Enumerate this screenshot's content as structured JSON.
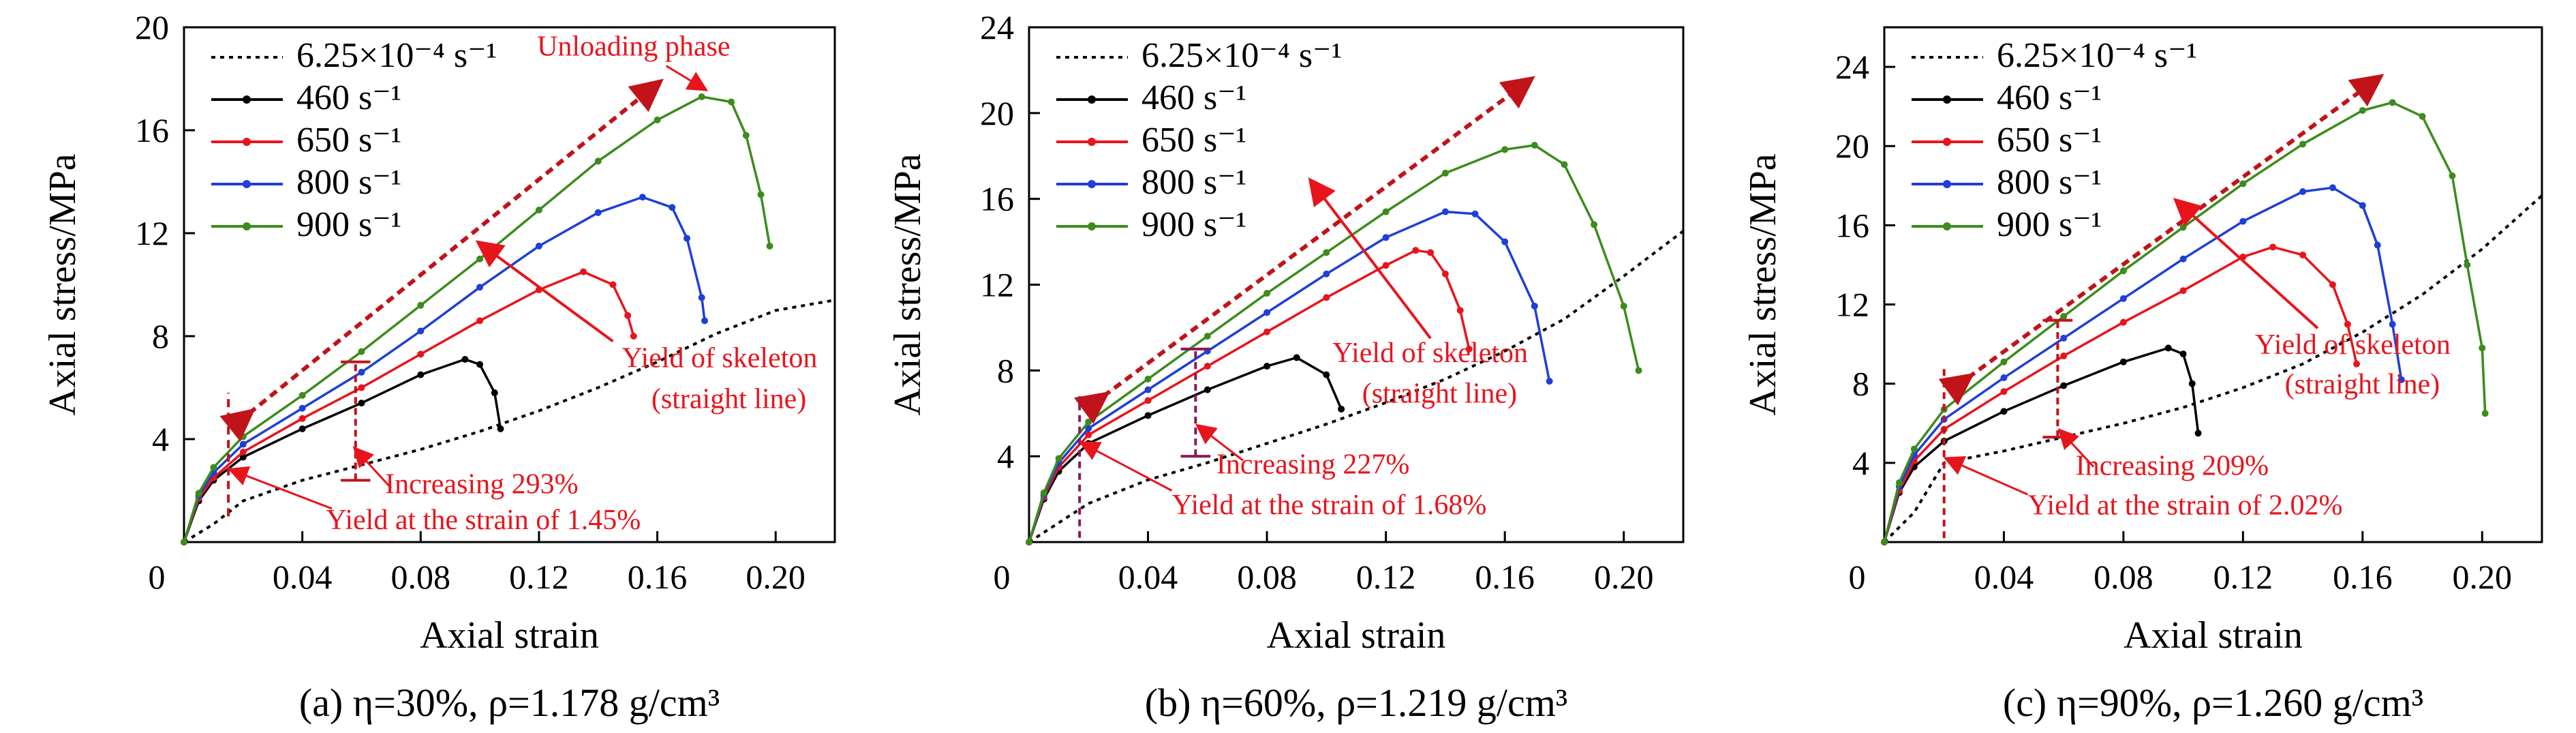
{
  "chart_data": [
    {
      "type": "line",
      "caption": "(a) η=30%,  ρ=1.178 g/cm³",
      "xlabel": "Axial strain",
      "ylabel": "Axial stress/MPa",
      "xlim": [
        0,
        0.22
      ],
      "ylim": [
        0,
        20
      ],
      "x_ticks": [
        "0",
        "0.04",
        "0.08",
        "0.12",
        "0.16",
        "0.20"
      ],
      "y_ticks": [
        "4",
        "8",
        "12",
        "16",
        "20"
      ],
      "legend_position": "top-left",
      "series": [
        {
          "name": "6.25×10⁻⁴ s⁻¹",
          "color": "#000000",
          "style": "dotted",
          "points": [
            [
              0,
              0
            ],
            [
              0.01,
              0.7
            ],
            [
              0.02,
              1.6
            ],
            [
              0.04,
              2.4
            ],
            [
              0.06,
              3.0
            ],
            [
              0.08,
              3.6
            ],
            [
              0.1,
              4.3
            ],
            [
              0.12,
              5.1
            ],
            [
              0.14,
              6.0
            ],
            [
              0.16,
              7.0
            ],
            [
              0.18,
              8.1
            ],
            [
              0.2,
              9.0
            ],
            [
              0.22,
              9.4
            ]
          ]
        },
        {
          "name": "460 s⁻¹",
          "color": "#000000",
          "style": "solid",
          "points": [
            [
              0,
              0
            ],
            [
              0.005,
              1.6
            ],
            [
              0.01,
              2.4
            ],
            [
              0.02,
              3.3
            ],
            [
              0.04,
              4.4
            ],
            [
              0.06,
              5.4
            ],
            [
              0.08,
              6.5
            ],
            [
              0.095,
              7.1
            ],
            [
              0.1,
              6.9
            ],
            [
              0.105,
              5.8
            ],
            [
              0.107,
              4.4
            ]
          ]
        },
        {
          "name": "650 s⁻¹",
          "color": "#e8141c",
          "style": "solid",
          "points": [
            [
              0,
              0
            ],
            [
              0.005,
              1.7
            ],
            [
              0.01,
              2.5
            ],
            [
              0.02,
              3.5
            ],
            [
              0.04,
              4.8
            ],
            [
              0.06,
              6.0
            ],
            [
              0.08,
              7.3
            ],
            [
              0.1,
              8.6
            ],
            [
              0.12,
              9.8
            ],
            [
              0.135,
              10.5
            ],
            [
              0.145,
              10.0
            ],
            [
              0.15,
              8.8
            ],
            [
              0.152,
              8.0
            ]
          ]
        },
        {
          "name": "800 s⁻¹",
          "color": "#1f3fd6",
          "style": "solid",
          "points": [
            [
              0,
              0
            ],
            [
              0.005,
              1.8
            ],
            [
              0.01,
              2.7
            ],
            [
              0.02,
              3.8
            ],
            [
              0.04,
              5.2
            ],
            [
              0.06,
              6.6
            ],
            [
              0.08,
              8.2
            ],
            [
              0.1,
              9.9
            ],
            [
              0.12,
              11.5
            ],
            [
              0.14,
              12.8
            ],
            [
              0.155,
              13.4
            ],
            [
              0.165,
              13.0
            ],
            [
              0.17,
              11.8
            ],
            [
              0.175,
              9.5
            ],
            [
              0.176,
              8.6
            ]
          ]
        },
        {
          "name": "900 s⁻¹",
          "color": "#3c8c1c",
          "style": "solid",
          "points": [
            [
              0,
              0
            ],
            [
              0.005,
              1.9
            ],
            [
              0.01,
              2.9
            ],
            [
              0.02,
              4.1
            ],
            [
              0.04,
              5.7
            ],
            [
              0.06,
              7.4
            ],
            [
              0.08,
              9.2
            ],
            [
              0.1,
              11.0
            ],
            [
              0.12,
              12.9
            ],
            [
              0.14,
              14.8
            ],
            [
              0.16,
              16.4
            ],
            [
              0.175,
              17.3
            ],
            [
              0.185,
              17.1
            ],
            [
              0.19,
              15.8
            ],
            [
              0.195,
              13.5
            ],
            [
              0.198,
              11.5
            ]
          ]
        }
      ],
      "annotations": {
        "unloading": "Unloading phase",
        "skeleton_1": "Yield of skeleton",
        "skeleton_2": "(straight line)",
        "increase": "Increasing 293%",
        "yield_strain": "Yield at the strain of 1.45%"
      }
    },
    {
      "type": "line",
      "caption": "(b) η=60%,  ρ=1.219 g/cm³",
      "xlabel": "Axial strain",
      "ylabel": "Axial stress/MPa",
      "xlim": [
        0,
        0.22
      ],
      "ylim": [
        0,
        24
      ],
      "x_ticks": [
        "0",
        "0.04",
        "0.08",
        "0.12",
        "0.16",
        "0.20"
      ],
      "y_ticks": [
        "4",
        "8",
        "12",
        "16",
        "20",
        "24"
      ],
      "legend_position": "top-left",
      "series": [
        {
          "name": "6.25×10⁻⁴ s⁻¹",
          "color": "#000000",
          "style": "dotted",
          "points": [
            [
              0,
              0
            ],
            [
              0.01,
              0.9
            ],
            [
              0.02,
              1.8
            ],
            [
              0.04,
              2.9
            ],
            [
              0.06,
              3.7
            ],
            [
              0.08,
              4.6
            ],
            [
              0.1,
              5.5
            ],
            [
              0.12,
              6.5
            ],
            [
              0.14,
              7.6
            ],
            [
              0.16,
              8.9
            ],
            [
              0.18,
              10.4
            ],
            [
              0.2,
              12.4
            ],
            [
              0.22,
              14.5
            ]
          ]
        },
        {
          "name": "460 s⁻¹",
          "color": "#000000",
          "style": "solid",
          "points": [
            [
              0,
              0
            ],
            [
              0.005,
              2.0
            ],
            [
              0.01,
              3.3
            ],
            [
              0.02,
              4.6
            ],
            [
              0.04,
              5.9
            ],
            [
              0.06,
              7.1
            ],
            [
              0.08,
              8.2
            ],
            [
              0.09,
              8.6
            ],
            [
              0.1,
              7.8
            ],
            [
              0.105,
              6.2
            ]
          ]
        },
        {
          "name": "650 s⁻¹",
          "color": "#e8141c",
          "style": "solid",
          "points": [
            [
              0,
              0
            ],
            [
              0.005,
              2.1
            ],
            [
              0.01,
              3.5
            ],
            [
              0.02,
              5.0
            ],
            [
              0.04,
              6.6
            ],
            [
              0.06,
              8.2
            ],
            [
              0.08,
              9.8
            ],
            [
              0.1,
              11.4
            ],
            [
              0.12,
              12.9
            ],
            [
              0.13,
              13.6
            ],
            [
              0.135,
              13.5
            ],
            [
              0.14,
              12.5
            ],
            [
              0.145,
              10.8
            ],
            [
              0.148,
              9.0
            ]
          ]
        },
        {
          "name": "800 s⁻¹",
          "color": "#1f3fd6",
          "style": "solid",
          "points": [
            [
              0,
              0
            ],
            [
              0.005,
              2.2
            ],
            [
              0.01,
              3.7
            ],
            [
              0.02,
              5.3
            ],
            [
              0.04,
              7.1
            ],
            [
              0.06,
              8.9
            ],
            [
              0.08,
              10.7
            ],
            [
              0.1,
              12.5
            ],
            [
              0.12,
              14.2
            ],
            [
              0.14,
              15.4
            ],
            [
              0.15,
              15.3
            ],
            [
              0.16,
              14.0
            ],
            [
              0.17,
              11.0
            ],
            [
              0.175,
              7.5
            ]
          ]
        },
        {
          "name": "900 s⁻¹",
          "color": "#3c8c1c",
          "style": "solid",
          "points": [
            [
              0,
              0
            ],
            [
              0.005,
              2.3
            ],
            [
              0.01,
              3.9
            ],
            [
              0.02,
              5.6
            ],
            [
              0.04,
              7.6
            ],
            [
              0.06,
              9.6
            ],
            [
              0.08,
              11.6
            ],
            [
              0.1,
              13.5
            ],
            [
              0.12,
              15.4
            ],
            [
              0.14,
              17.2
            ],
            [
              0.16,
              18.3
            ],
            [
              0.17,
              18.5
            ],
            [
              0.18,
              17.6
            ],
            [
              0.19,
              14.8
            ],
            [
              0.2,
              11.0
            ],
            [
              0.205,
              8.0
            ]
          ]
        }
      ],
      "annotations": {
        "skeleton_1": "Yield of skeleton",
        "skeleton_2": "(straight line)",
        "increase": "Increasing 227%",
        "yield_strain": "Yield at the strain of 1.68%"
      }
    },
    {
      "type": "line",
      "caption": "(c) η=90%,  ρ=1.260 g/cm³",
      "xlabel": "Axial strain",
      "ylabel": "Axial stress/MPa",
      "xlim": [
        0,
        0.22
      ],
      "ylim": [
        0,
        26
      ],
      "x_ticks": [
        "0",
        "0.04",
        "0.08",
        "0.12",
        "0.16",
        "0.20"
      ],
      "y_ticks": [
        "4",
        "8",
        "12",
        "16",
        "20",
        "24"
      ],
      "legend_position": "top-left",
      "series": [
        {
          "name": "6.25×10⁻⁴ s⁻¹",
          "color": "#000000",
          "style": "dotted",
          "points": [
            [
              0,
              0
            ],
            [
              0.01,
              1.5
            ],
            [
              0.02,
              4.0
            ],
            [
              0.04,
              4.6
            ],
            [
              0.06,
              5.3
            ],
            [
              0.08,
              6.0
            ],
            [
              0.1,
              6.8
            ],
            [
              0.12,
              7.8
            ],
            [
              0.14,
              9.0
            ],
            [
              0.16,
              10.6
            ],
            [
              0.18,
              12.5
            ],
            [
              0.2,
              14.8
            ],
            [
              0.22,
              17.5
            ]
          ]
        },
        {
          "name": "460 s⁻¹",
          "color": "#000000",
          "style": "solid",
          "points": [
            [
              0,
              0
            ],
            [
              0.005,
              2.5
            ],
            [
              0.01,
              3.8
            ],
            [
              0.02,
              5.1
            ],
            [
              0.04,
              6.6
            ],
            [
              0.06,
              7.9
            ],
            [
              0.08,
              9.1
            ],
            [
              0.095,
              9.8
            ],
            [
              0.1,
              9.5
            ],
            [
              0.103,
              8.0
            ],
            [
              0.105,
              5.5
            ]
          ]
        },
        {
          "name": "650 s⁻¹",
          "color": "#e8141c",
          "style": "solid",
          "points": [
            [
              0,
              0
            ],
            [
              0.005,
              2.6
            ],
            [
              0.01,
              4.1
            ],
            [
              0.02,
              5.7
            ],
            [
              0.04,
              7.6
            ],
            [
              0.06,
              9.4
            ],
            [
              0.08,
              11.1
            ],
            [
              0.1,
              12.7
            ],
            [
              0.12,
              14.4
            ],
            [
              0.13,
              14.9
            ],
            [
              0.14,
              14.5
            ],
            [
              0.15,
              13.0
            ],
            [
              0.155,
              11.0
            ],
            [
              0.158,
              9.0
            ]
          ]
        },
        {
          "name": "800 s⁻¹",
          "color": "#1f3fd6",
          "style": "solid",
          "points": [
            [
              0,
              0
            ],
            [
              0.005,
              2.8
            ],
            [
              0.01,
              4.4
            ],
            [
              0.02,
              6.2
            ],
            [
              0.04,
              8.3
            ],
            [
              0.06,
              10.3
            ],
            [
              0.08,
              12.3
            ],
            [
              0.1,
              14.3
            ],
            [
              0.12,
              16.2
            ],
            [
              0.14,
              17.7
            ],
            [
              0.15,
              17.9
            ],
            [
              0.16,
              17.0
            ],
            [
              0.165,
              15.0
            ],
            [
              0.17,
              11.0
            ],
            [
              0.173,
              8.2
            ]
          ]
        },
        {
          "name": "900 s⁻¹",
          "color": "#3c8c1c",
          "style": "solid",
          "points": [
            [
              0,
              0
            ],
            [
              0.005,
              3.0
            ],
            [
              0.01,
              4.7
            ],
            [
              0.02,
              6.7
            ],
            [
              0.04,
              9.1
            ],
            [
              0.06,
              11.4
            ],
            [
              0.08,
              13.7
            ],
            [
              0.1,
              15.9
            ],
            [
              0.12,
              18.1
            ],
            [
              0.14,
              20.1
            ],
            [
              0.16,
              21.8
            ],
            [
              0.17,
              22.2
            ],
            [
              0.18,
              21.5
            ],
            [
              0.19,
              18.5
            ],
            [
              0.195,
              14.0
            ],
            [
              0.2,
              9.8
            ],
            [
              0.201,
              6.5
            ]
          ]
        }
      ],
      "annotations": {
        "skeleton_1": "Yield of skeleton",
        "skeleton_2": "(straight line)",
        "increase": "Increasing 209%",
        "yield_strain": "Yield at the strain of 2.02%"
      }
    }
  ]
}
